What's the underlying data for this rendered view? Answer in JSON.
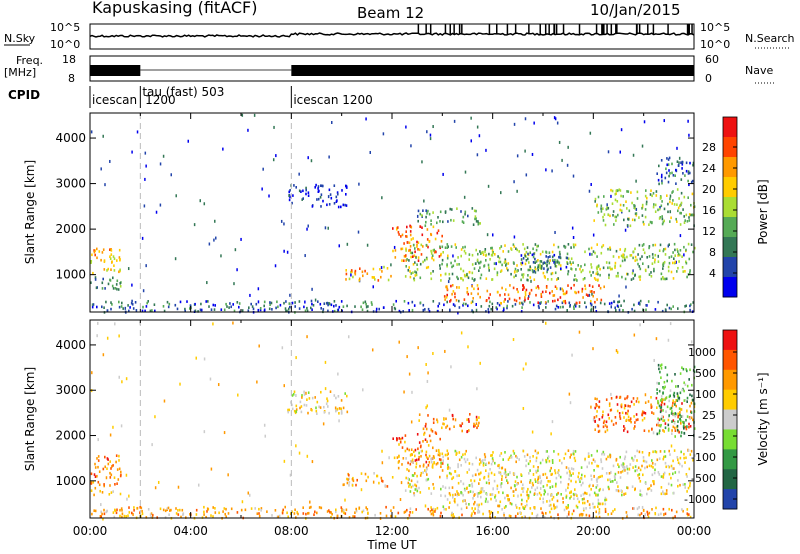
{
  "header": {
    "station": "Kapuskasing (fitACF)",
    "beam": "Beam 12",
    "date": "10/Jan/2015"
  },
  "status_panels": {
    "nsky_label": "N.Sky",
    "nsky_ticks": [
      "10^5",
      "10^0"
    ],
    "nsearch_label": "N.Search",
    "nsearch_ticks": [
      "10^5",
      "10^0"
    ],
    "freq_label_1": "Freq.",
    "freq_label_2": "[MHz]",
    "freq_ticks": [
      "18",
      "8"
    ],
    "nave_label": "Nave",
    "nave_ticks": [
      "60",
      "0"
    ],
    "cpid_label": "CPID",
    "modes": [
      {
        "label": "icescan",
        "start_hour": 0.0
      },
      {
        "label": "1200",
        "start_hour": 1.0
      },
      {
        "label": "tau (fast) 503",
        "start_hour": 2.0
      },
      {
        "label": "icescan 1200",
        "start_hour": 8.0
      }
    ],
    "freq_gap_hours": [
      2.0,
      8.0
    ]
  },
  "chart_data": [
    {
      "type": "heatmap",
      "panel": "power",
      "ylabel": "Slant Range [km]",
      "xlabel": "",
      "xlim": [
        0,
        24
      ],
      "ylim": [
        180,
        4550
      ],
      "yticks": [
        "1000",
        "2000",
        "3000",
        "4000"
      ],
      "colorbar_label": "Power [dB]",
      "colorbar_ticks": [
        "4",
        "8",
        "12",
        "16",
        "20",
        "24",
        "28"
      ],
      "colors": [
        "#0000ee",
        "#2244aa",
        "#337755",
        "#55aa55",
        "#aadd33",
        "#ffcc00",
        "#ff9900",
        "#ff4400",
        "#ee1111"
      ],
      "bands": [
        {
          "t0": 0.0,
          "t1": 1.2,
          "r0": 1050,
          "r1": 1600,
          "level": 6
        },
        {
          "t0": 0.0,
          "t1": 1.2,
          "r0": 700,
          "r1": 1000,
          "level": 3
        },
        {
          "t0": 0.0,
          "t1": 24.0,
          "r0": 200,
          "r1": 450,
          "level": 2
        },
        {
          "t0": 7.8,
          "t1": 10.2,
          "r0": 2500,
          "r1": 3000,
          "level": 1
        },
        {
          "t0": 10.0,
          "t1": 12.0,
          "r0": 900,
          "r1": 1200,
          "level": 6
        },
        {
          "t0": 12.0,
          "t1": 14.0,
          "r0": 1300,
          "r1": 2100,
          "level": 7
        },
        {
          "t0": 13.0,
          "t1": 15.5,
          "r0": 2100,
          "r1": 2500,
          "level": 3
        },
        {
          "t0": 12.5,
          "t1": 24.0,
          "r0": 900,
          "r1": 1700,
          "level": 4
        },
        {
          "t0": 14.0,
          "t1": 20.5,
          "r0": 400,
          "r1": 800,
          "level": 7
        },
        {
          "t0": 17.0,
          "t1": 19.0,
          "r0": 1100,
          "r1": 1500,
          "level": 2
        },
        {
          "t0": 20.0,
          "t1": 24.0,
          "r0": 2100,
          "r1": 2900,
          "level": 4
        },
        {
          "t0": 22.5,
          "t1": 24.0,
          "r0": 3000,
          "r1": 3600,
          "level": 2
        }
      ]
    },
    {
      "type": "heatmap",
      "panel": "velocity",
      "ylabel": "Slant Range [km]",
      "xlabel": "Time UT",
      "xlim": [
        0,
        24
      ],
      "ylim": [
        180,
        4550
      ],
      "yticks": [
        "1000",
        "2000",
        "3000",
        "4000"
      ],
      "xticks": [
        "00:00",
        "04:00",
        "08:00",
        "12:00",
        "16:00",
        "20:00",
        "00:00"
      ],
      "colorbar_label": "Velocity [m s⁻¹]",
      "colorbar_ticks": [
        "1000",
        "500",
        "100",
        "25",
        "-25",
        "-100",
        "-500",
        "-1000"
      ],
      "colors": [
        "#ee1111",
        "#ff5500",
        "#ff9900",
        "#ffcc00",
        "#cccccc",
        "#77dd33",
        "#339944",
        "#226644",
        "#2244aa"
      ],
      "bands": [
        {
          "t0": 0.0,
          "t1": 1.2,
          "r0": 1050,
          "r1": 1600,
          "level": 2
        },
        {
          "t0": 0.0,
          "t1": 1.2,
          "r0": 700,
          "r1": 1000,
          "level": 3
        },
        {
          "t0": 0.0,
          "t1": 24.0,
          "r0": 200,
          "r1": 450,
          "level": 3
        },
        {
          "t0": 7.8,
          "t1": 10.2,
          "r0": 2500,
          "r1": 3000,
          "level": 4
        },
        {
          "t0": 10.0,
          "t1": 12.0,
          "r0": 900,
          "r1": 1200,
          "level": 3
        },
        {
          "t0": 12.0,
          "t1": 14.0,
          "r0": 1300,
          "r1": 2100,
          "level": 2
        },
        {
          "t0": 13.0,
          "t1": 15.5,
          "r0": 2100,
          "r1": 2500,
          "level": 2
        },
        {
          "t0": 12.5,
          "t1": 24.0,
          "r0": 700,
          "r1": 1700,
          "level": 4
        },
        {
          "t0": 14.0,
          "t1": 20.5,
          "r0": 400,
          "r1": 800,
          "level": 4
        },
        {
          "t0": 20.0,
          "t1": 24.0,
          "r0": 2100,
          "r1": 2900,
          "level": 2
        },
        {
          "t0": 22.5,
          "t1": 24.0,
          "r0": 2000,
          "r1": 3600,
          "level": 6
        }
      ]
    }
  ]
}
